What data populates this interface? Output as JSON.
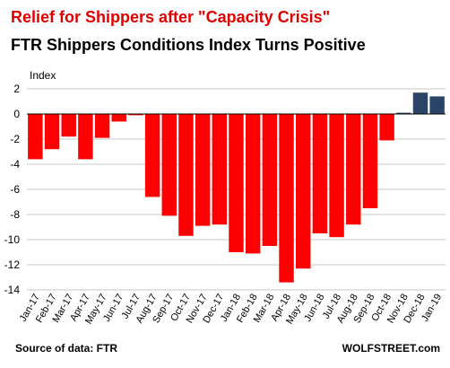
{
  "chart_data": {
    "type": "bar",
    "title": "Relief for Shippers after \"Capacity  Crisis\"",
    "subtitle": "FTR Shippers Conditions  Index Turns Positive",
    "title_color": "#e00000",
    "subtitle_color": "#000000",
    "ylabel": "Index",
    "ylim": [
      -14,
      2
    ],
    "yticks": [
      2,
      0,
      -2,
      -4,
      -6,
      -8,
      -10,
      -12,
      -14
    ],
    "grid": true,
    "legend": "none",
    "categories": [
      "Jan-17",
      "Feb-17",
      "Mar-17",
      "Apr-17",
      "May-17",
      "Jun-17",
      "Jul-17",
      "Aug-17",
      "Sep-17",
      "Oct-17",
      "Nov-17",
      "Dec-17",
      "Jan-18",
      "Feb-18",
      "Mar-18",
      "Apr-18",
      "May-18",
      "Jun-18",
      "Jul-18",
      "Aug-18",
      "Sep-18",
      "Oct-18",
      "Nov-18",
      "Dec-18",
      "Jan-19"
    ],
    "values": [
      -3.6,
      -2.8,
      -1.8,
      -3.6,
      -1.9,
      -0.6,
      -0.1,
      -6.6,
      -8.1,
      -9.7,
      -8.9,
      -8.8,
      -11.0,
      -11.1,
      -10.5,
      -13.4,
      -12.3,
      -9.5,
      -9.8,
      -8.8,
      -7.5,
      -2.1,
      0.1,
      1.7,
      1.4
    ],
    "negative_color": "#ff0000",
    "positive_color": "#2a4467",
    "source": "Source of data: FTR",
    "brand": "WOLFSTREET.com"
  }
}
